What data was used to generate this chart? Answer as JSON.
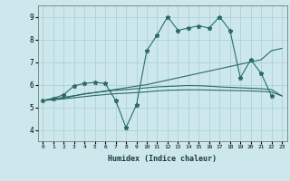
{
  "xlabel": "Humidex (Indice chaleur)",
  "bg_color": "#cce8ec",
  "grid_color": "#aaccd0",
  "line_color": "#2a6b68",
  "x_values": [
    0,
    1,
    2,
    3,
    4,
    5,
    6,
    7,
    8,
    9,
    10,
    11,
    12,
    13,
    14,
    15,
    16,
    17,
    18,
    19,
    20,
    21,
    22,
    23
  ],
  "series1": [
    5.3,
    5.4,
    5.55,
    5.95,
    6.05,
    6.1,
    6.05,
    5.3,
    4.1,
    5.1,
    7.5,
    8.2,
    9.0,
    8.4,
    8.5,
    8.6,
    8.5,
    9.0,
    8.4,
    6.3,
    7.1,
    6.5,
    5.5,
    null
  ],
  "line1_y": [
    5.3,
    5.37,
    5.44,
    5.51,
    5.58,
    5.65,
    5.72,
    5.79,
    5.86,
    5.93,
    6.0,
    6.1,
    6.2,
    6.3,
    6.4,
    6.5,
    6.6,
    6.7,
    6.8,
    6.9,
    7.0,
    7.1,
    7.5,
    7.6
  ],
  "line2_y": [
    5.3,
    5.35,
    5.4,
    5.5,
    5.6,
    5.65,
    5.7,
    5.75,
    5.78,
    5.82,
    5.86,
    5.9,
    5.92,
    5.94,
    5.96,
    5.95,
    5.93,
    5.9,
    5.88,
    5.86,
    5.84,
    5.82,
    5.78,
    5.5
  ],
  "line3_y": [
    5.3,
    5.33,
    5.37,
    5.42,
    5.47,
    5.52,
    5.56,
    5.6,
    5.62,
    5.65,
    5.68,
    5.72,
    5.75,
    5.76,
    5.77,
    5.77,
    5.76,
    5.75,
    5.74,
    5.73,
    5.72,
    5.7,
    5.67,
    5.5
  ],
  "ylim": [
    3.5,
    9.5
  ],
  "yticks": [
    4,
    5,
    6,
    7,
    8,
    9
  ],
  "xlim": [
    -0.5,
    23.5
  ]
}
